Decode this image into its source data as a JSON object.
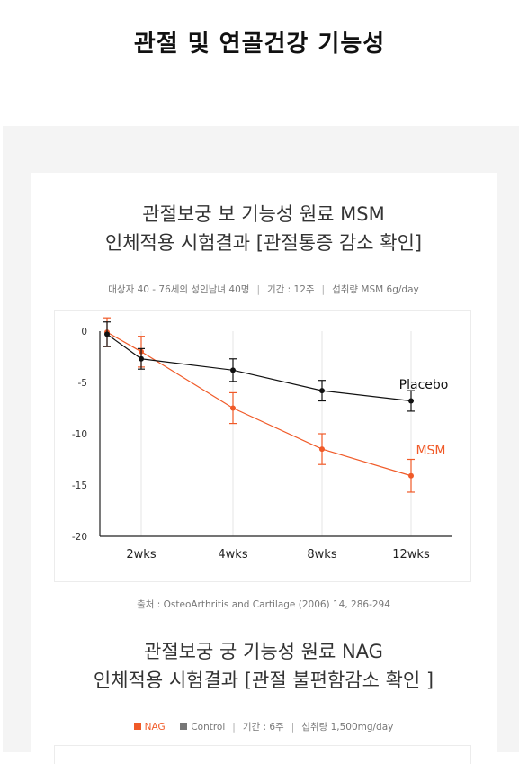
{
  "page": {
    "title": "관절 및 연골건강 기능성"
  },
  "section1": {
    "title_line1": "관절보궁 보  기능성 원료 MSM",
    "title_line2": "인체적용 시험결과 [관절통증 감소 확인]",
    "meta_subjects": "대상자 40 - 76세의 성인남녀 40명",
    "meta_period": "기간 : 12주",
    "meta_dose": "섭취량 MSM 6g/day",
    "separator": "|",
    "source": "출처 : OsteoArthritis and Cartilage (2006) 14, 286-294"
  },
  "section2": {
    "title_line1": "관절보궁 궁  기능성 원료 NAG",
    "title_line2": "인체적용 시험결과 [관절 불편함감소 확인 ]",
    "legend_nag": "NAG",
    "legend_control": "Control",
    "meta_period": "기간 : 6주",
    "meta_dose": "섭취량 1,500mg/day",
    "separator": "|",
    "colors": {
      "nag": "#f05a28",
      "control": "#777777"
    }
  },
  "chart_data": {
    "type": "line",
    "categories": [
      "0",
      "2wks",
      "4wks",
      "8wks",
      "12wks"
    ],
    "x_labels_shown": [
      "2wks",
      "4wks",
      "8wks",
      "12wks"
    ],
    "yticks": [
      0,
      -5,
      -10,
      -15,
      -20
    ],
    "ylim": [
      -20,
      0
    ],
    "grid": "vertical",
    "series": [
      {
        "name": "Placebo",
        "color": "#111111",
        "values": [
          -0.3,
          -2.7,
          -3.8,
          -5.8,
          -6.8
        ],
        "err": [
          1.2,
          1.0,
          1.1,
          1.0,
          1.0
        ]
      },
      {
        "name": "MSM",
        "color": "#f05a28",
        "values": [
          -0.1,
          -2.0,
          -7.5,
          -11.5,
          -14.1
        ],
        "err": [
          1.4,
          1.5,
          1.5,
          1.5,
          1.6
        ]
      }
    ]
  }
}
